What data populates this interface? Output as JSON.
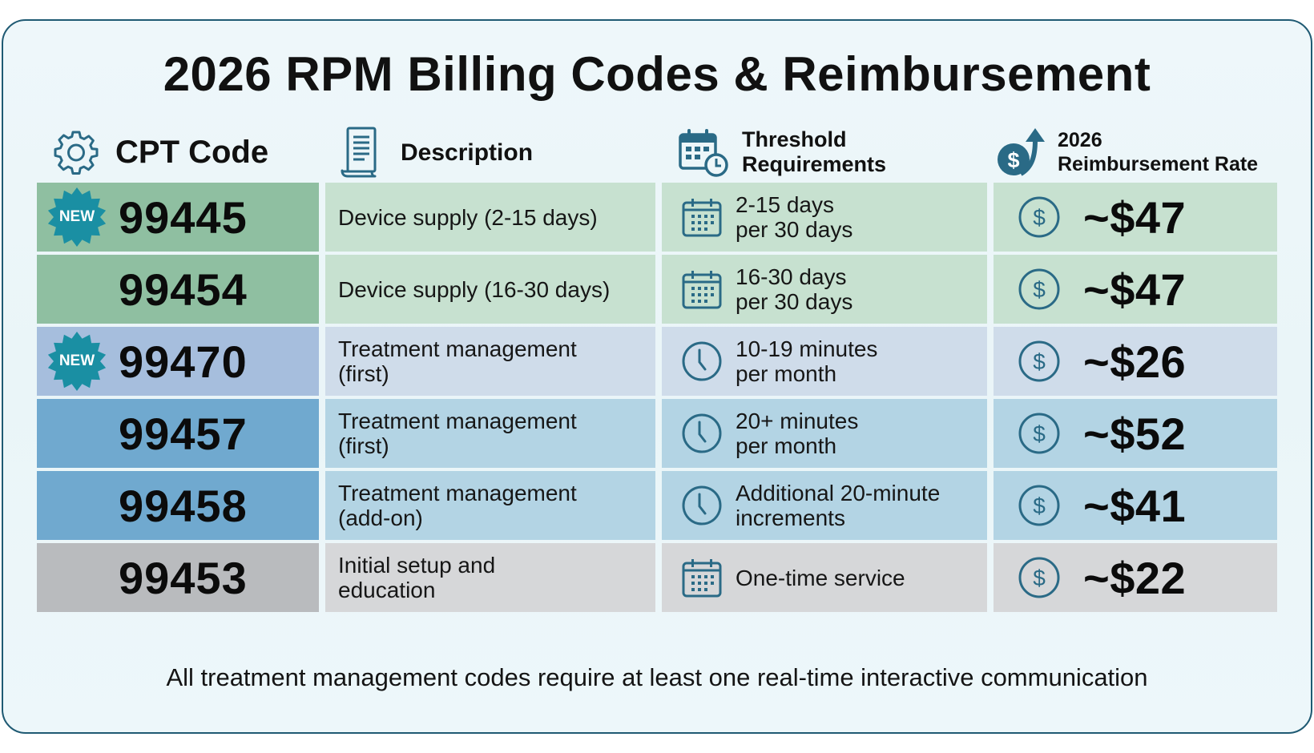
{
  "title": "2026 RPM Billing Codes & Reimbursement",
  "headers": {
    "code": {
      "label": "CPT Code",
      "icon": "gear-icon"
    },
    "description": {
      "label": "Description",
      "icon": "document-icon"
    },
    "threshold": {
      "line1": "Threshold",
      "line2": "Requirements",
      "icon": "calendar-clock-icon"
    },
    "rate": {
      "line1": "2026",
      "line2": "Reimbursement Rate",
      "icon": "dollar-up-arrow-icon"
    }
  },
  "badge_label": "NEW",
  "colors": {
    "border": "#1f5a73",
    "icon": "#2a6a86",
    "badge": "#1a8fa3",
    "green_code": "#8fbfa1",
    "green_cell": "#c7e1d0",
    "lavender_code": "#a6bedd",
    "lavender_cell": "#cfdcea",
    "blue_code": "#70a9cf",
    "blue_cell": "#b3d4e4",
    "gray_code": "#b9bbbe",
    "gray_cell": "#d6d7d9"
  },
  "rows": [
    {
      "code": "99445",
      "is_new": true,
      "description": [
        "Device supply (2-15 days)"
      ],
      "threshold": [
        "2-15 days",
        "per 30 days"
      ],
      "threshold_icon": "calendar-icon",
      "rate": "~$47",
      "theme": "green"
    },
    {
      "code": "99454",
      "is_new": false,
      "description": [
        "Device supply (16-30 days)"
      ],
      "threshold": [
        "16-30 days",
        "per 30 days"
      ],
      "threshold_icon": "calendar-icon",
      "rate": "~$47",
      "theme": "green"
    },
    {
      "code": "99470",
      "is_new": true,
      "description": [
        "Treatment management",
        "(first)"
      ],
      "threshold": [
        "10-19 minutes",
        "per month"
      ],
      "threshold_icon": "clock-icon",
      "rate": "~$26",
      "theme": "lavender"
    },
    {
      "code": "99457",
      "is_new": false,
      "description": [
        "Treatment management",
        "(first)"
      ],
      "threshold": [
        "20+ minutes",
        "per month"
      ],
      "threshold_icon": "clock-icon",
      "rate": "~$52",
      "theme": "blue"
    },
    {
      "code": "99458",
      "is_new": false,
      "description": [
        "Treatment management",
        "(add-on)"
      ],
      "threshold": [
        "Additional 20-minute",
        "increments"
      ],
      "threshold_icon": "clock-icon",
      "rate": "~$41",
      "theme": "blue"
    },
    {
      "code": "99453",
      "is_new": false,
      "description": [
        "Initial setup and",
        "education"
      ],
      "threshold": [
        "One-time service"
      ],
      "threshold_icon": "calendar-icon",
      "rate": "~$22",
      "theme": "gray"
    }
  ],
  "footer": "All treatment management codes require at least one real-time interactive communication"
}
